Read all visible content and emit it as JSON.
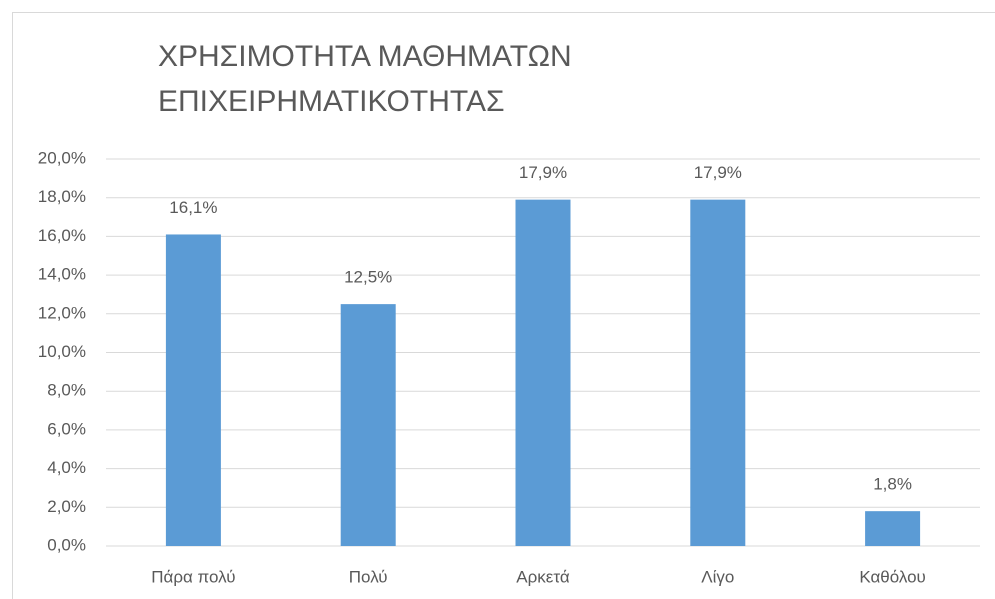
{
  "chart_data": {
    "type": "bar",
    "title": "ΧΡΗΣΙΜΟΤΗΤΑ ΜΑΘΗΜΑΤΩΝ ΕΠΙΧΕΙΡΗΜΑΤΙΚΟΤΗΤΑΣ",
    "categories": [
      "Πάρα πολύ",
      "Πολύ",
      "Αρκετά",
      "Λίγο",
      "Καθόλου"
    ],
    "values": [
      16.1,
      12.5,
      17.9,
      17.9,
      1.8
    ],
    "value_labels": [
      "16,1%",
      "12,5%",
      "17,9%",
      "17,9%",
      "1,8%"
    ],
    "color": "#5b9bd5",
    "ylim": [
      0,
      20
    ],
    "yticks": [
      {
        "value": 0,
        "label": "0,0%"
      },
      {
        "value": 2,
        "label": "2,0%"
      },
      {
        "value": 4,
        "label": "4,0%"
      },
      {
        "value": 6,
        "label": "6,0%"
      },
      {
        "value": 8,
        "label": "8,0%"
      },
      {
        "value": 10,
        "label": "10,0%"
      },
      {
        "value": 12,
        "label": "12,0%"
      },
      {
        "value": 14,
        "label": "14,0%"
      },
      {
        "value": 16,
        "label": "16,0%"
      },
      {
        "value": 18,
        "label": "18,0%"
      },
      {
        "value": 20,
        "label": "20,0%"
      }
    ],
    "grid": true
  }
}
